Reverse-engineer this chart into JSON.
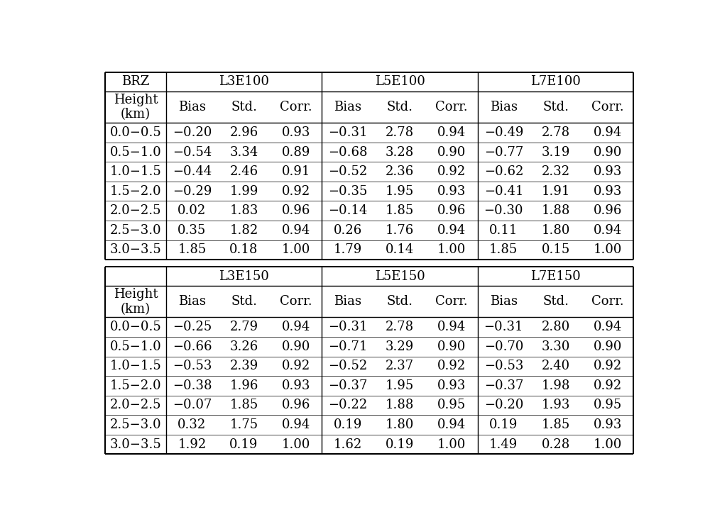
{
  "title": "BRZ",
  "sections": [
    {
      "group_headers": [
        "L3E100",
        "L5E100",
        "L7E100"
      ],
      "sub_headers": [
        "Bias",
        "Std.",
        "Corr."
      ],
      "height_label": "Height\n(km)",
      "height_bins": [
        "0.0−0.5",
        "0.5−1.0",
        "1.0−1.5",
        "1.5−2.0",
        "2.0−2.5",
        "2.5−3.0",
        "3.0−3.5"
      ],
      "data": {
        "L3E100": [
          [
            "−0.20",
            "2.96",
            "0.93"
          ],
          [
            "−0.54",
            "3.34",
            "0.89"
          ],
          [
            "−0.44",
            "2.46",
            "0.91"
          ],
          [
            "−0.29",
            "1.99",
            "0.92"
          ],
          [
            "0.02",
            "1.83",
            "0.96"
          ],
          [
            "0.35",
            "1.82",
            "0.94"
          ],
          [
            "1.85",
            "0.18",
            "1.00"
          ]
        ],
        "L5E100": [
          [
            "−0.31",
            "2.78",
            "0.94"
          ],
          [
            "−0.68",
            "3.28",
            "0.90"
          ],
          [
            "−0.52",
            "2.36",
            "0.92"
          ],
          [
            "−0.35",
            "1.95",
            "0.93"
          ],
          [
            "−0.14",
            "1.85",
            "0.96"
          ],
          [
            "0.26",
            "1.76",
            "0.94"
          ],
          [
            "1.79",
            "0.14",
            "1.00"
          ]
        ],
        "L7E100": [
          [
            "−0.49",
            "2.78",
            "0.94"
          ],
          [
            "−0.77",
            "3.19",
            "0.90"
          ],
          [
            "−0.62",
            "2.32",
            "0.93"
          ],
          [
            "−0.41",
            "1.91",
            "0.93"
          ],
          [
            "−0.30",
            "1.88",
            "0.96"
          ],
          [
            "0.11",
            "1.80",
            "0.94"
          ],
          [
            "1.85",
            "0.15",
            "1.00"
          ]
        ]
      }
    },
    {
      "group_headers": [
        "L3E150",
        "L5E150",
        "L7E150"
      ],
      "sub_headers": [
        "Bias",
        "Std.",
        "Corr."
      ],
      "height_label": "Height\n(km)",
      "height_bins": [
        "0.0−0.5",
        "0.5−1.0",
        "1.0−1.5",
        "1.5−2.0",
        "2.0−2.5",
        "2.5−3.0",
        "3.0−3.5"
      ],
      "data": {
        "L3E150": [
          [
            "−0.25",
            "2.79",
            "0.94"
          ],
          [
            "−0.66",
            "3.26",
            "0.90"
          ],
          [
            "−0.53",
            "2.39",
            "0.92"
          ],
          [
            "−0.38",
            "1.96",
            "0.93"
          ],
          [
            "−0.07",
            "1.85",
            "0.96"
          ],
          [
            "0.32",
            "1.75",
            "0.94"
          ],
          [
            "1.92",
            "0.19",
            "1.00"
          ]
        ],
        "L5E150": [
          [
            "−0.31",
            "2.78",
            "0.94"
          ],
          [
            "−0.71",
            "3.29",
            "0.90"
          ],
          [
            "−0.52",
            "2.37",
            "0.92"
          ],
          [
            "−0.37",
            "1.95",
            "0.93"
          ],
          [
            "−0.22",
            "1.88",
            "0.95"
          ],
          [
            "0.19",
            "1.80",
            "0.94"
          ],
          [
            "1.62",
            "0.19",
            "1.00"
          ]
        ],
        "L7E150": [
          [
            "−0.31",
            "2.80",
            "0.94"
          ],
          [
            "−0.70",
            "3.30",
            "0.90"
          ],
          [
            "−0.53",
            "2.40",
            "0.92"
          ],
          [
            "−0.37",
            "1.98",
            "0.92"
          ],
          [
            "−0.20",
            "1.93",
            "0.95"
          ],
          [
            "0.19",
            "1.85",
            "0.93"
          ],
          [
            "1.49",
            "0.28",
            "1.00"
          ]
        ]
      }
    }
  ],
  "font_family": "DejaVu Serif",
  "header_fontsize": 13,
  "cell_fontsize": 13,
  "bg_color": "#ffffff",
  "line_color": "#000000"
}
